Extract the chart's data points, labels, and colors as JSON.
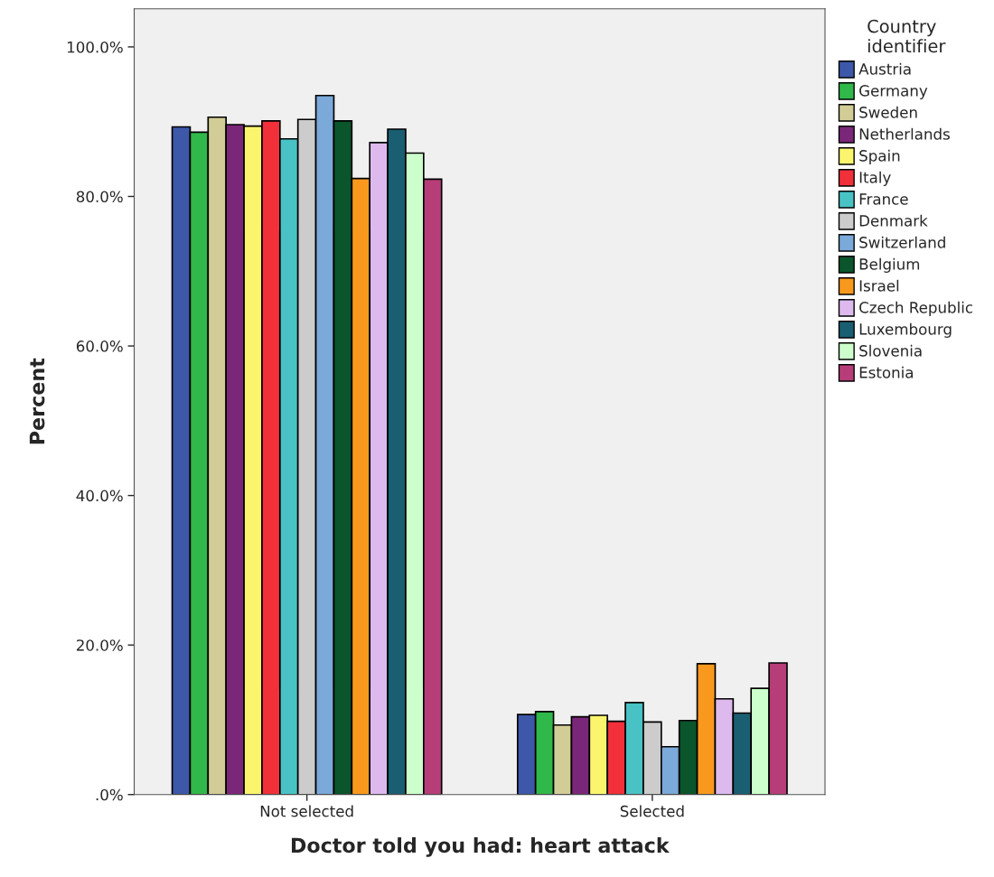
{
  "chart_data": {
    "type": "bar",
    "xlabel": "Doctor told you had: heart attack",
    "ylabel": "Percent",
    "legend_title": "Country\nidentifier",
    "categories": [
      "Not selected",
      "Selected"
    ],
    "ylim": [
      0,
      105.1
    ],
    "yticks": [
      {
        "value": 0,
        "label": ".0%"
      },
      {
        "value": 20,
        "label": "20.0%"
      },
      {
        "value": 40,
        "label": "40.0%"
      },
      {
        "value": 60,
        "label": "60.0%"
      },
      {
        "value": 80,
        "label": "80.0%"
      },
      {
        "value": 100,
        "label": "100.0%"
      }
    ],
    "grid": false,
    "legend": "right",
    "series": [
      {
        "name": "Austria",
        "color": "#3d58a8",
        "values": [
          89.3,
          10.7
        ]
      },
      {
        "name": "Germany",
        "color": "#30b84a",
        "values": [
          88.6,
          11.1
        ]
      },
      {
        "name": "Sweden",
        "color": "#d2cd96",
        "values": [
          90.6,
          9.3
        ]
      },
      {
        "name": "Netherlands",
        "color": "#7b2779",
        "values": [
          89.6,
          10.4
        ]
      },
      {
        "name": "Spain",
        "color": "#fbf56e",
        "values": [
          89.4,
          10.6
        ]
      },
      {
        "name": "Italy",
        "color": "#f1303a",
        "values": [
          90.1,
          9.8
        ]
      },
      {
        "name": "France",
        "color": "#48c2c5",
        "values": [
          87.7,
          12.3
        ]
      },
      {
        "name": "Denmark",
        "color": "#cccccc",
        "values": [
          90.3,
          9.7
        ]
      },
      {
        "name": "Switzerland",
        "color": "#7ba9d9",
        "values": [
          93.5,
          6.4
        ]
      },
      {
        "name": "Belgium",
        "color": "#0a552c",
        "values": [
          90.1,
          9.9
        ]
      },
      {
        "name": "Israel",
        "color": "#f8991d",
        "values": [
          82.4,
          17.5
        ]
      },
      {
        "name": "Czech Republic",
        "color": "#ddb9ee",
        "values": [
          87.2,
          12.8
        ]
      },
      {
        "name": "Luxembourg",
        "color": "#1a5e72",
        "values": [
          89.0,
          10.9
        ]
      },
      {
        "name": "Slovenia",
        "color": "#ccffcc",
        "values": [
          85.8,
          14.2
        ]
      },
      {
        "name": "Estonia",
        "color": "#b73d79",
        "values": [
          82.3,
          17.6
        ]
      }
    ]
  }
}
